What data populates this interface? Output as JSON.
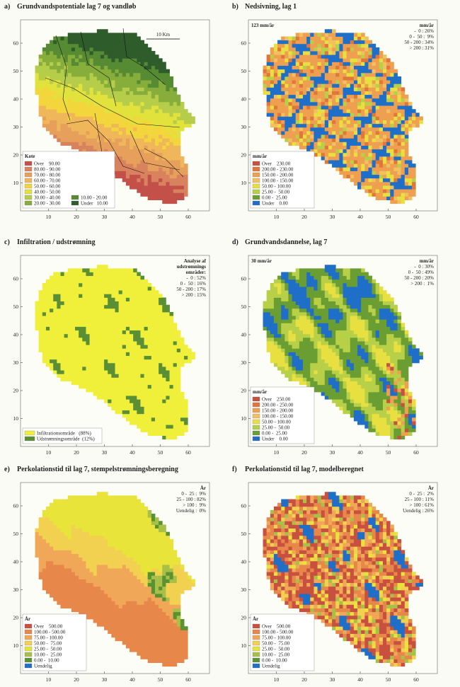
{
  "axis": {
    "x": [
      10,
      20,
      30,
      40,
      50,
      60
    ],
    "y": [
      10,
      20,
      30,
      40,
      50,
      60
    ]
  },
  "panels": [
    {
      "letter": "a)",
      "title": "Grundvandspotentiale lag 7 og vandløb",
      "scale_label": "10 Km",
      "legend_title": "Kote",
      "legend": [
        {
          "label": "Over    90.00",
          "color": "#c4504a"
        },
        {
          "label": "80.00 - 90.00",
          "color": "#d8825e"
        },
        {
          "label": "70.00 - 80.00",
          "color": "#e6a05c"
        },
        {
          "label": "60.00 - 70.00",
          "color": "#efb65a"
        },
        {
          "label": "50.00 - 60.00",
          "color": "#f2d63c"
        },
        {
          "label": "40.00 - 50.00",
          "color": "#e2e23c"
        },
        {
          "label": "30.00 - 40.00",
          "color": "#b6cd4a"
        },
        {
          "label": "20.00 - 30.00",
          "color": "#87ad3a"
        },
        {
          "label": "10.00 - 20.00",
          "color": "#568b33"
        },
        {
          "label": "Under   10.00",
          "color": "#2f5c2b"
        }
      ]
    },
    {
      "letter": "b)",
      "title": "Nedsivning, lag 1",
      "subtitle": "123 mm/år",
      "stats_header": [
        "mm/år"
      ],
      "stats": [
        "-  0 : 26%",
        "0 -  50 :  9%",
        "50 - 200 : 34%",
        "> 200 : 31%"
      ],
      "legend_title": "mm/år",
      "legend": [
        {
          "label": "Over    230.00",
          "color": "#c8503f"
        },
        {
          "label": "200.00 - 230.00",
          "color": "#e0763a"
        },
        {
          "label": "150.00 - 200.00",
          "color": "#eea050"
        },
        {
          "label": "100.00 - 150.00",
          "color": "#f2c060"
        },
        {
          "label": "50.00 - 100.00",
          "color": "#e8e040"
        },
        {
          "label": "25.00 -  50.00",
          "color": "#b8d048"
        },
        {
          "label": "0.00 -  25.00",
          "color": "#6a9e32"
        },
        {
          "label": "Under    0.00",
          "color": "#1f6fc8"
        }
      ]
    },
    {
      "letter": "c)",
      "title": "Infiltration / udstrømning",
      "stats_header": [
        "Analyse af",
        "udstrømnings",
        "områder:"
      ],
      "stats": [
        "-  0 : 52%",
        "0 -  50 : 16%",
        "50 - 200 : 17%",
        "> 200 : 15%"
      ],
      "legend": [
        {
          "label": "Infiltrationsområde   (88%)",
          "color": "#f0ef3a"
        },
        {
          "label": "Udstrømningsområde  (12%)",
          "color": "#5a8f35"
        }
      ]
    },
    {
      "letter": "d)",
      "title": "Grundvandsdannelse, lag 7",
      "subtitle": "30 mm/år",
      "stats_header": [
        "mm/år"
      ],
      "stats": [
        "-  0 : 30%",
        "0 -  50 : 49%",
        "50 - 200 : 20%",
        "> 200 :  1%"
      ],
      "legend_title": "mm/år",
      "legend": [
        {
          "label": "Over    250.00",
          "color": "#c8503f"
        },
        {
          "label": "200.00 - 250.00",
          "color": "#e0763a"
        },
        {
          "label": "150.00 - 200.00",
          "color": "#eea050"
        },
        {
          "label": "100.00 - 150.00",
          "color": "#f2c060"
        },
        {
          "label": "50.00 - 100.00",
          "color": "#e8e040"
        },
        {
          "label": "25.00 -  50.00",
          "color": "#b8d048"
        },
        {
          "label": "0.00 -  25.00",
          "color": "#6a9e32"
        },
        {
          "label": "Under    0.00",
          "color": "#1f6fc8"
        }
      ]
    },
    {
      "letter": "e)",
      "title": "Perkolationstid til lag 7, stempelstrømningsberegning",
      "stats_header": [
        "År"
      ],
      "stats": [
        "0 -  25 :  9%",
        "25 - 100 : 82%",
        "> 100 :  9%",
        "Uendelig :  0%"
      ],
      "legend_title": "År",
      "legend": [
        {
          "label": "Over    500.00",
          "color": "#c8503f"
        },
        {
          "label": "100.00 - 500.00",
          "color": "#e8874a"
        },
        {
          "label": "75.00 - 100.00",
          "color": "#f0a858"
        },
        {
          "label": "50.00 -  75.00",
          "color": "#f2d050"
        },
        {
          "label": "25.00 -  50.00",
          "color": "#e8e43a"
        },
        {
          "label": "10.00 -  25.00",
          "color": "#a8c048"
        },
        {
          "label": "0.00 -  10.00",
          "color": "#5a9232"
        },
        {
          "label": "Uendelig",
          "color": "#1f6fc8"
        }
      ]
    },
    {
      "letter": "f)",
      "title": "Perkolationstid til lag 7, modelberegnet",
      "stats_header": [
        "År"
      ],
      "stats": [
        "0 -  25 :  2%",
        "25 - 100 : 11%",
        "> 100 : 61%",
        "Uendelig : 26%"
      ],
      "legend_title": "År",
      "legend": [
        {
          "label": "Over    500.00",
          "color": "#c8503f"
        },
        {
          "label": "100.00 - 500.00",
          "color": "#e8874a"
        },
        {
          "label": "75.00 - 100.00",
          "color": "#f0a858"
        },
        {
          "label": "50.00 -  75.00",
          "color": "#f2d050"
        },
        {
          "label": "25.00 -  50.00",
          "color": "#e8e43a"
        },
        {
          "label": "10.00 -  25.00",
          "color": "#a8c048"
        },
        {
          "label": "0.00 -  10.00",
          "color": "#5a9232"
        },
        {
          "label": "Uendelig",
          "color": "#1f6fc8"
        }
      ]
    }
  ]
}
